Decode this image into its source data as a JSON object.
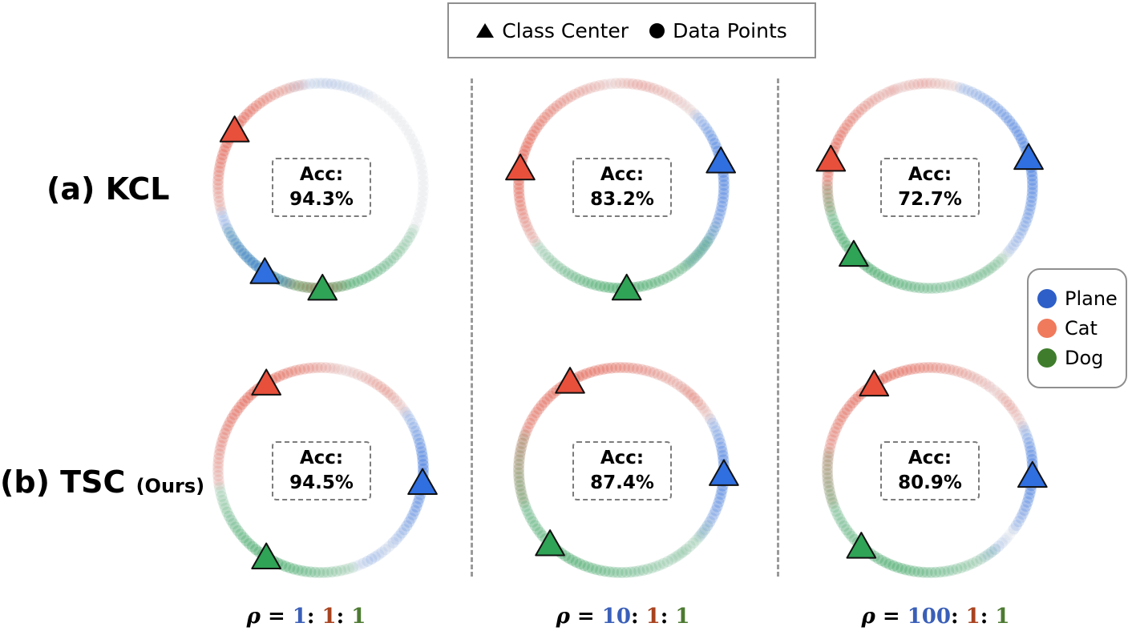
{
  "colors": {
    "plane": "#2f6fe0",
    "cat": "#e8503c",
    "dog": "#2fa356",
    "ratio_plane": "#3a5fb8",
    "ratio_cat": "#a8431f",
    "ratio_dog": "#4c7a31"
  },
  "legend": {
    "class_center": "Class Center",
    "data_points": "Data Points",
    "class_center_icon": "triangle-icon",
    "data_points_icon": "circle-icon"
  },
  "classes": [
    {
      "key": "plane",
      "label": "Plane",
      "color": "#2e5fc8"
    },
    {
      "key": "cat",
      "label": "Cat",
      "color": "#f07a5c"
    },
    {
      "key": "dog",
      "label": "Dog",
      "color": "#3f7d2c"
    }
  ],
  "rows": [
    {
      "label": "(a) KCL"
    },
    {
      "label": "(b) TSC",
      "suffix": "(Ours)"
    }
  ],
  "acc_label": "Acc:",
  "panels": [
    {
      "row": 0,
      "col": 0,
      "acc": "94.3%",
      "centers": {
        "plane": 237,
        "cat": 147,
        "dog": 271
      },
      "arcs": [
        {
          "cls": "dog",
          "from": 205,
          "to": 335,
          "peak": 272,
          "alpha": 0.75
        },
        {
          "cls": "cat",
          "from": 100,
          "to": 195,
          "peak": 150,
          "alpha": 0.75
        },
        {
          "cls": "plane",
          "from": 195,
          "to": 255,
          "peak": 235,
          "alpha": 0.7
        },
        {
          "cls": "cat",
          "from": 250,
          "to": 285,
          "peak": 270,
          "alpha": 0.35
        },
        {
          "cls": "plane",
          "from": 60,
          "to": 110,
          "peak": 85,
          "alpha": 0.15
        }
      ]
    },
    {
      "row": 0,
      "col": 1,
      "acc": "83.2%",
      "centers": {
        "plane": 14,
        "cat": 170,
        "dog": 273
      },
      "arcs": [
        {
          "cls": "plane",
          "from": -50,
          "to": 45,
          "peak": 15,
          "alpha": 0.75
        },
        {
          "cls": "cat",
          "from": 100,
          "to": 215,
          "peak": 170,
          "alpha": 0.75
        },
        {
          "cls": "dog",
          "from": 215,
          "to": 330,
          "peak": 270,
          "alpha": 0.75
        },
        {
          "cls": "cat",
          "from": 45,
          "to": 100,
          "peak": 80,
          "alpha": 0.3
        },
        {
          "cls": "dog",
          "from": -55,
          "to": -20,
          "peak": -35,
          "alpha": 0.2
        }
      ]
    },
    {
      "row": 0,
      "col": 2,
      "acc": "72.7%",
      "centers": {
        "plane": 16,
        "cat": 165,
        "dog": 222
      },
      "arcs": [
        {
          "cls": "plane",
          "from": -40,
          "to": 75,
          "peak": 12,
          "alpha": 0.75
        },
        {
          "cls": "cat",
          "from": 110,
          "to": 195,
          "peak": 165,
          "alpha": 0.7
        },
        {
          "cls": "dog",
          "from": 180,
          "to": 315,
          "peak": 222,
          "alpha": 0.75
        },
        {
          "cls": "cat",
          "from": 75,
          "to": 115,
          "peak": 95,
          "alpha": 0.3
        },
        {
          "cls": "dog",
          "from": -75,
          "to": -40,
          "peak": -55,
          "alpha": 0.2
        }
      ]
    },
    {
      "row": 1,
      "col": 0,
      "acc": "94.5%",
      "centers": {
        "plane": 353,
        "cat": 122,
        "dog": 238
      },
      "arcs": [
        {
          "cls": "cat",
          "from": 80,
          "to": 190,
          "peak": 125,
          "alpha": 0.75
        },
        {
          "cls": "dog",
          "from": 190,
          "to": 290,
          "peak": 240,
          "alpha": 0.75
        },
        {
          "cls": "plane",
          "from": -45,
          "to": 35,
          "peak": 0,
          "alpha": 0.75
        },
        {
          "cls": "cat",
          "from": 35,
          "to": 80,
          "peak": 50,
          "alpha": 0.35
        },
        {
          "cls": "plane",
          "from": 290,
          "to": 315,
          "peak": 300,
          "alpha": 0.25
        }
      ]
    },
    {
      "row": 1,
      "col": 1,
      "acc": "87.4%",
      "centers": {
        "plane": 358,
        "cat": 120,
        "dog": 226
      },
      "arcs": [
        {
          "cls": "cat",
          "from": 45,
          "to": 200,
          "peak": 120,
          "alpha": 0.7
        },
        {
          "cls": "dog",
          "from": 160,
          "to": 310,
          "peak": 240,
          "alpha": 0.65
        },
        {
          "cls": "plane",
          "from": -40,
          "to": 30,
          "peak": 0,
          "alpha": 0.75
        },
        {
          "cls": "cat",
          "from": 30,
          "to": 55,
          "peak": 42,
          "alpha": 0.35
        },
        {
          "cls": "dog",
          "from": -60,
          "to": -30,
          "peak": -45,
          "alpha": 0.25
        }
      ]
    },
    {
      "row": 1,
      "col": 2,
      "acc": "80.9%",
      "centers": {
        "plane": 357,
        "cat": 123,
        "dog": 228
      },
      "arcs": [
        {
          "cls": "cat",
          "from": 55,
          "to": 200,
          "peak": 120,
          "alpha": 0.7
        },
        {
          "cls": "dog",
          "from": 170,
          "to": 310,
          "peak": 250,
          "alpha": 0.65
        },
        {
          "cls": "plane",
          "from": -35,
          "to": 25,
          "peak": 0,
          "alpha": 0.8
        },
        {
          "cls": "cat",
          "from": 25,
          "to": 55,
          "peak": 40,
          "alpha": 0.3
        },
        {
          "cls": "plane",
          "from": 300,
          "to": 320,
          "peak": 310,
          "alpha": 0.2
        }
      ]
    }
  ],
  "ratios": [
    {
      "rho": "ρ",
      "eq": " = ",
      "plane": "1",
      "cat": "1",
      "dog": "1",
      "sep": ": "
    },
    {
      "rho": "ρ",
      "eq": " = ",
      "plane": "10",
      "cat": "1",
      "dog": "1",
      "sep": ": "
    },
    {
      "rho": "ρ",
      "eq": " = ",
      "plane": "100",
      "cat": "1",
      "dog": "1",
      "sep": ": "
    }
  ]
}
